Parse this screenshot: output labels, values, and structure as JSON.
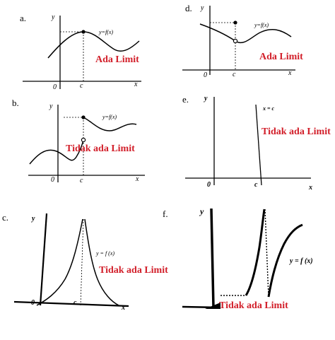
{
  "panels": [
    {
      "id": "a",
      "label": "a.",
      "y_axis": "y",
      "x_axis": "x",
      "origin": "0",
      "c_label": "c",
      "func_label": "y=f(x)",
      "caption": "Ada Limit"
    },
    {
      "id": "b",
      "label": "b.",
      "y_axis": "y",
      "x_axis": "x",
      "origin": "0",
      "c_label": "c",
      "func_label": "y=f(x)",
      "caption": "Tidak ada Limit"
    },
    {
      "id": "c",
      "label": "c.",
      "y_axis": "y",
      "x_axis": "x",
      "origin": "0",
      "c_label": "c",
      "func_label": "y = f (x)",
      "caption": "Tidak ada Limit"
    },
    {
      "id": "d",
      "label": "d.",
      "y_axis": "y",
      "x_axis": "x",
      "origin": "0",
      "c_label": "c",
      "func_label": "y=f(x)",
      "caption": "Ada Limit"
    },
    {
      "id": "e",
      "label": "e.",
      "y_axis": "y",
      "x_axis": "x",
      "origin": "0",
      "c_label": "c",
      "func_label": "x = c",
      "caption": "Tidak ada Limit"
    },
    {
      "id": "f",
      "label": "f.",
      "y_axis": "y",
      "x_axis": "",
      "origin": "",
      "c_label": "",
      "func_label": "y = f (x)",
      "caption": "Tidak ada Limit"
    }
  ]
}
